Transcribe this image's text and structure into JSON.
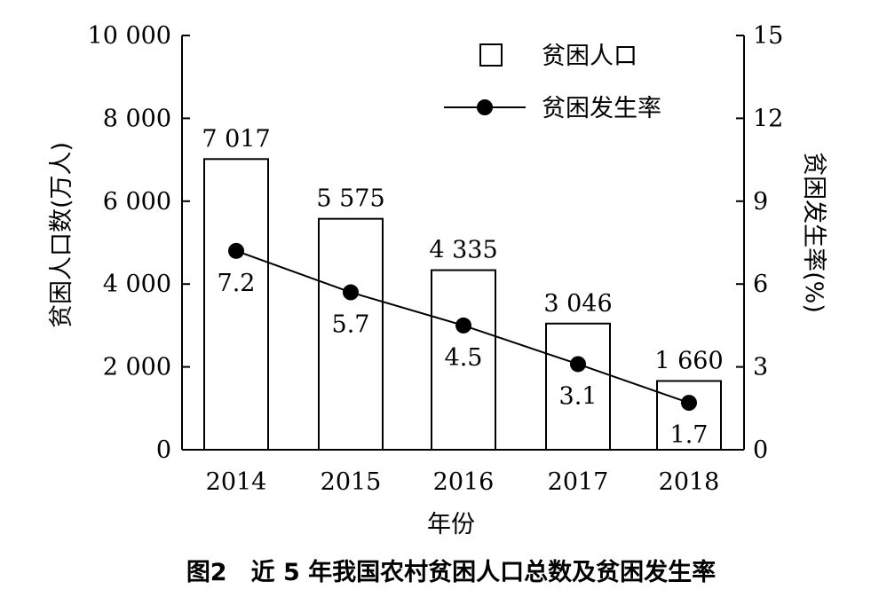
{
  "chart_data": {
    "type": "bar",
    "categories": [
      "2014",
      "2015",
      "2016",
      "2017",
      "2018"
    ],
    "series": [
      {
        "name": "贫困人口",
        "type": "bar",
        "axis": "left",
        "values": [
          7017,
          5575,
          4335,
          3046,
          1660
        ],
        "value_labels": [
          "7 017",
          "5 575",
          "4 335",
          "3 046",
          "1 660"
        ]
      },
      {
        "name": "贫困发生率",
        "type": "line",
        "axis": "right",
        "values": [
          7.2,
          5.7,
          4.5,
          3.1,
          1.7
        ],
        "value_labels": [
          "7.2",
          "5.7",
          "4.5",
          "3.1",
          "1.7"
        ]
      }
    ],
    "xlabel": "年份",
    "ylabel": "贫困人口数(万人)",
    "y2label": "贫困发生率(%)",
    "ylim": [
      0,
      10000
    ],
    "y2lim": [
      0,
      15
    ],
    "yticks": [
      0,
      2000,
      4000,
      6000,
      8000,
      10000
    ],
    "ytick_labels": [
      "0",
      "2 000",
      "4 000",
      "6 000",
      "8 000",
      "10 000"
    ],
    "y2ticks": [
      0,
      3,
      6,
      9,
      12,
      15
    ],
    "y2tick_labels": [
      "0",
      "3",
      "6",
      "9",
      "12",
      "15"
    ],
    "grid": false,
    "legend_position": "top-right"
  },
  "caption": "图2　近 5 年我国农村贫困人口总数及贫困发生率",
  "colors": {
    "ink": "#000000",
    "bar_fill": "#ffffff"
  }
}
